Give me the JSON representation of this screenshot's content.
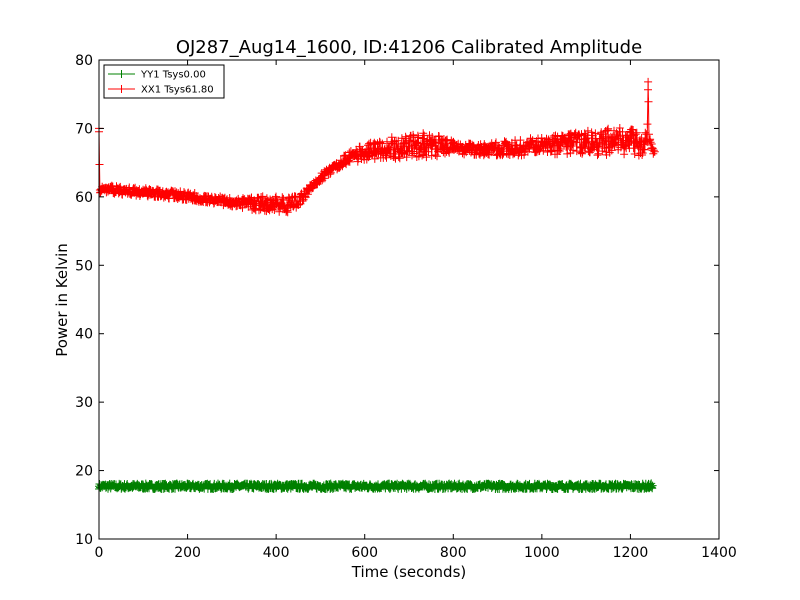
{
  "chart_data": {
    "type": "line",
    "title": "OJ287_Aug14_1600, ID:41206 Calibrated Amplitude",
    "xlabel": "Time (seconds)",
    "ylabel": "Power in Kelvin",
    "xlim": [
      0,
      1400
    ],
    "ylim": [
      10,
      80
    ],
    "xticks": [
      "0",
      "200",
      "400",
      "600",
      "800",
      "1000",
      "1200",
      "1400"
    ],
    "yticks": [
      "10",
      "20",
      "30",
      "40",
      "50",
      "60",
      "70",
      "80"
    ],
    "grid": false,
    "legend_position": "top-left",
    "marker": "plus",
    "series": [
      {
        "name": "YY1 Tsys0.00",
        "color": "#008000",
        "x": [
          0,
          100,
          200,
          300,
          400,
          500,
          600,
          700,
          800,
          900,
          1000,
          1100,
          1200,
          1245,
          1250
        ],
        "y": [
          17.7,
          17.7,
          17.7,
          17.7,
          17.7,
          17.7,
          17.7,
          17.7,
          17.7,
          17.7,
          17.7,
          17.7,
          17.7,
          17.7,
          17.8
        ],
        "band": 0.4
      },
      {
        "name": "XX1 Tsys61.80",
        "color": "#ff0000",
        "x": [
          0,
          2,
          4,
          6,
          20,
          50,
          100,
          150,
          200,
          250,
          300,
          350,
          400,
          440,
          460,
          480,
          500,
          530,
          560,
          580,
          600,
          650,
          700,
          750,
          800,
          850,
          900,
          950,
          1000,
          1050,
          1100,
          1150,
          1200,
          1230,
          1238,
          1240,
          1242,
          1250,
          1255
        ],
        "y": [
          70,
          61,
          61,
          61,
          61.2,
          60.9,
          60.7,
          60.4,
          60.1,
          59.7,
          59.2,
          59,
          58.9,
          59,
          60,
          61.5,
          62.8,
          64.3,
          65.6,
          66.1,
          66.5,
          67,
          67.4,
          67.6,
          67.2,
          66.9,
          67,
          67.2,
          67.4,
          67.7,
          67.9,
          68.1,
          68.1,
          68,
          68,
          76.8,
          68,
          66.8,
          66.6
        ],
        "band": [
          0.5,
          0.5,
          0.5,
          0.5,
          0.6,
          0.6,
          0.6,
          0.6,
          0.6,
          0.6,
          0.6,
          1.0,
          1.3,
          1.2,
          0.7,
          0.6,
          0.6,
          0.6,
          0.8,
          1.0,
          1.2,
          1.6,
          1.8,
          1.8,
          1.0,
          0.8,
          1.0,
          1.2,
          1.4,
          1.4,
          1.8,
          2.0,
          2.0,
          2.0,
          1.5,
          0.5,
          1.5,
          0.5,
          0.5
        ]
      }
    ]
  }
}
